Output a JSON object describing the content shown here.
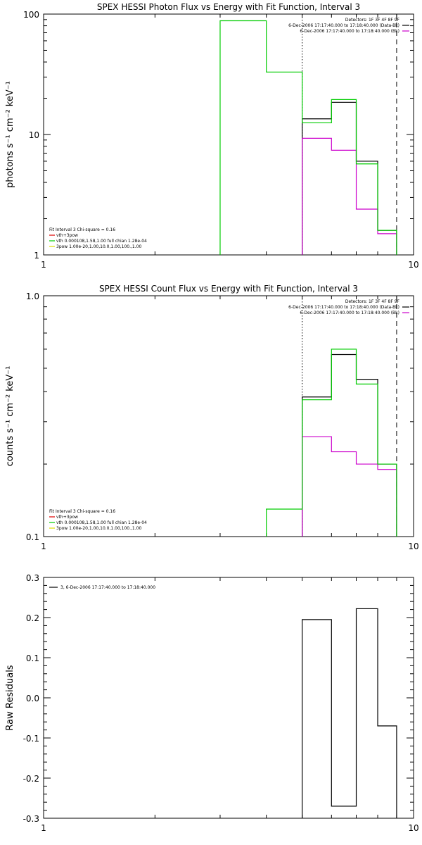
{
  "chart_data": [
    {
      "type": "line",
      "title": "SPEX HESSI Photon Flux vs Energy with Fit Function, Interval 3",
      "xlabel": "",
      "ylabel": "photons s⁻¹ cm⁻² keV⁻¹",
      "xscale": "log",
      "yscale": "log",
      "xlim": [
        1,
        10
      ],
      "ylim": [
        1,
        100
      ],
      "x_tick_labels": [
        "1",
        "10"
      ],
      "y_tick_labels": [
        "1",
        "10",
        "100"
      ],
      "vlines": [
        {
          "x": 5.0,
          "style": "dotted"
        },
        {
          "x": 9.0,
          "style": "dashed"
        }
      ],
      "legend_top_right": [
        {
          "text": "Detectors: 1F 3F 4F 8F 9F",
          "color": ""
        },
        {
          "text": "6-Dec-2006 17:17:40.000 to 17:18:40.000 (Data-Bk)",
          "color": "#000000"
        },
        {
          "text": "6-Dec-2006 17:17:40.000 to 17:18:40.000 (Bk)",
          "color": "#cc00cc"
        }
      ],
      "legend_bottom_left": [
        {
          "text": "Fit Interval 3    Chi-square = 0.16",
          "color": ""
        },
        {
          "text": "vth+3pow",
          "color": "#dd0000"
        },
        {
          "text": "vth 0.000108,1.58,1.00  full chian 1.28e-04",
          "color": "#00cc00"
        },
        {
          "text": "3pow 1.00e-20,1.00,10.0,1.00,100.,1.00",
          "color": "#dddd00"
        }
      ],
      "series": [
        {
          "name": "Data-Bk",
          "color": "#000000",
          "edges": [
            5,
            6,
            7,
            8,
            9
          ],
          "values": [
            13.5,
            18.5,
            6.0,
            1.6
          ]
        },
        {
          "name": "Bk",
          "color": "#cc00cc",
          "edges": [
            5,
            6,
            7,
            8,
            9
          ],
          "values": [
            9.3,
            7.4,
            2.4,
            1.5
          ]
        },
        {
          "name": "vth+3pow",
          "color": "#00cc00",
          "edges": [
            3,
            4,
            5,
            6,
            7,
            8,
            9
          ],
          "values": [
            88,
            33,
            12.5,
            19.5,
            5.7,
            1.6
          ]
        }
      ]
    },
    {
      "type": "line",
      "title": "SPEX HESSI Count Flux vs Energy with Fit Function, Interval 3",
      "xlabel": "",
      "ylabel": "counts s⁻¹ cm⁻² keV⁻¹",
      "xscale": "log",
      "yscale": "log",
      "xlim": [
        1,
        10
      ],
      "ylim": [
        0.1,
        1.0
      ],
      "x_tick_labels": [
        "1",
        "10"
      ],
      "y_tick_labels": [
        "0.1",
        "1.0"
      ],
      "vlines": [
        {
          "x": 5.0,
          "style": "dotted"
        },
        {
          "x": 9.0,
          "style": "dashed"
        }
      ],
      "legend_top_right": [
        {
          "text": "Detectors: 1F 3F 4F 8F 9F",
          "color": ""
        },
        {
          "text": "6-Dec-2006 17:17:40.000 to 17:18:40.000 (Data-Bk)",
          "color": "#000000"
        },
        {
          "text": "6-Dec-2006 17:17:40.000 to 17:18:40.000 (Bk)",
          "color": "#cc00cc"
        }
      ],
      "legend_bottom_left": [
        {
          "text": "Fit Interval 3    Chi-square = 0.16",
          "color": ""
        },
        {
          "text": "vth+3pow",
          "color": "#dd0000"
        },
        {
          "text": "vth 0.000108,1.58,1.00  full chian 1.28e-04",
          "color": "#00cc00"
        },
        {
          "text": "3pow 1.00e-20,1.00,10.0,1.00,100.,1.00",
          "color": "#dddd00"
        }
      ],
      "series": [
        {
          "name": "Data-Bk",
          "color": "#000000",
          "edges": [
            5,
            6,
            7,
            8,
            9
          ],
          "values": [
            0.38,
            0.57,
            0.45,
            0.2
          ]
        },
        {
          "name": "Bk",
          "color": "#cc00cc",
          "edges": [
            5,
            6,
            7,
            8,
            9
          ],
          "values": [
            0.26,
            0.225,
            0.2,
            0.19
          ]
        },
        {
          "name": "vth+3pow",
          "color": "#00cc00",
          "edges": [
            4,
            5,
            6,
            7,
            8,
            9
          ],
          "values": [
            0.13,
            0.37,
            0.6,
            0.43,
            0.2
          ]
        }
      ]
    },
    {
      "type": "line",
      "title": "",
      "xlabel": "",
      "ylabel": "Raw Residuals",
      "xscale": "log",
      "yscale": "linear",
      "xlim": [
        1,
        10
      ],
      "ylim": [
        -0.3,
        0.3
      ],
      "x_tick_labels": [
        "1",
        "10"
      ],
      "y_tick_labels": [
        "-0.3",
        "-0.2",
        "-0.1",
        "0.0",
        "0.1",
        "0.2",
        "0.3"
      ],
      "legend_top_left": [
        {
          "text": "3,  6-Dec-2006 17:17:40.000 to 17:18:40.000",
          "color": "#000000"
        }
      ],
      "series": [
        {
          "name": "3,  6-Dec-2006 17:17:40.000 to 17:18:40.000",
          "color": "#000000",
          "edges": [
            5,
            6,
            7,
            8,
            9
          ],
          "values": [
            0.195,
            -0.27,
            0.222,
            -0.07
          ]
        }
      ]
    }
  ]
}
